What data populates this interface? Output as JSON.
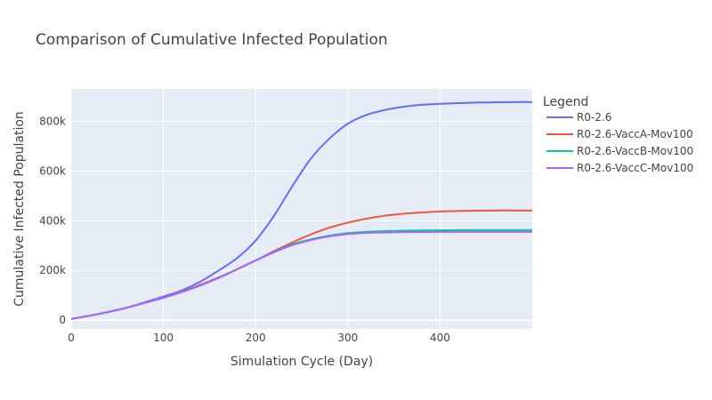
{
  "chart_data": {
    "type": "line",
    "title": "Comparison of Cumulative Infected Population",
    "xlabel": "Simulation Cycle (Day)",
    "ylabel": "Cumulative Infected Population",
    "xlim": [
      0,
      500
    ],
    "ylim": [
      -35000,
      930000
    ],
    "x_ticks": [
      0,
      100,
      200,
      300,
      400
    ],
    "x_tick_labels": [
      "0",
      "100",
      "200",
      "300",
      "400"
    ],
    "y_ticks": [
      0,
      200000,
      400000,
      600000,
      800000
    ],
    "y_tick_labels": [
      "0",
      "200k",
      "400k",
      "600k",
      "800k"
    ],
    "grid": true,
    "legend_title": "Legend",
    "legend_position": "right",
    "x": [
      0,
      20,
      40,
      60,
      80,
      100,
      120,
      140,
      160,
      180,
      200,
      220,
      240,
      260,
      280,
      300,
      320,
      340,
      360,
      380,
      400,
      420,
      440,
      460,
      480,
      500
    ],
    "series": [
      {
        "name": "R0-2.6",
        "color": "#636efa",
        "values": [
          5000,
          18000,
          33000,
          50000,
          72000,
          95000,
          120000,
          155000,
          200000,
          250000,
          320000,
          420000,
          540000,
          650000,
          730000,
          790000,
          825000,
          845000,
          858000,
          866000,
          870000,
          873000,
          875000,
          876000,
          877000,
          877000
        ]
      },
      {
        "name": "R0-2.6-VaccA-Mov100",
        "color": "#ef553b",
        "values": [
          5000,
          18000,
          33000,
          50000,
          70000,
          90000,
          115000,
          142000,
          172000,
          205000,
          240000,
          278000,
          313000,
          345000,
          372000,
          392000,
          408000,
          420000,
          428000,
          433000,
          437000,
          439000,
          440000,
          441000,
          441000,
          441000
        ]
      },
      {
        "name": "R0-2.6-VaccB-Mov100",
        "color": "#00cc96",
        "values": [
          5000,
          18000,
          33000,
          50000,
          70000,
          90000,
          113000,
          140000,
          170000,
          205000,
          240000,
          275000,
          305000,
          325000,
          340000,
          350000,
          355000,
          358000,
          360000,
          361000,
          361500,
          362000,
          362000,
          362000,
          362000,
          362000
        ]
      },
      {
        "name": "R0-2.6-VaccC-Mov100",
        "color": "#ab63fa",
        "values": [
          5000,
          18000,
          33000,
          50000,
          70000,
          90000,
          113000,
          140000,
          170000,
          205000,
          240000,
          273000,
          302000,
          322000,
          337000,
          346000,
          351000,
          353000,
          354000,
          354500,
          355000,
          355000,
          355000,
          355000,
          355000,
          355000
        ]
      }
    ]
  }
}
